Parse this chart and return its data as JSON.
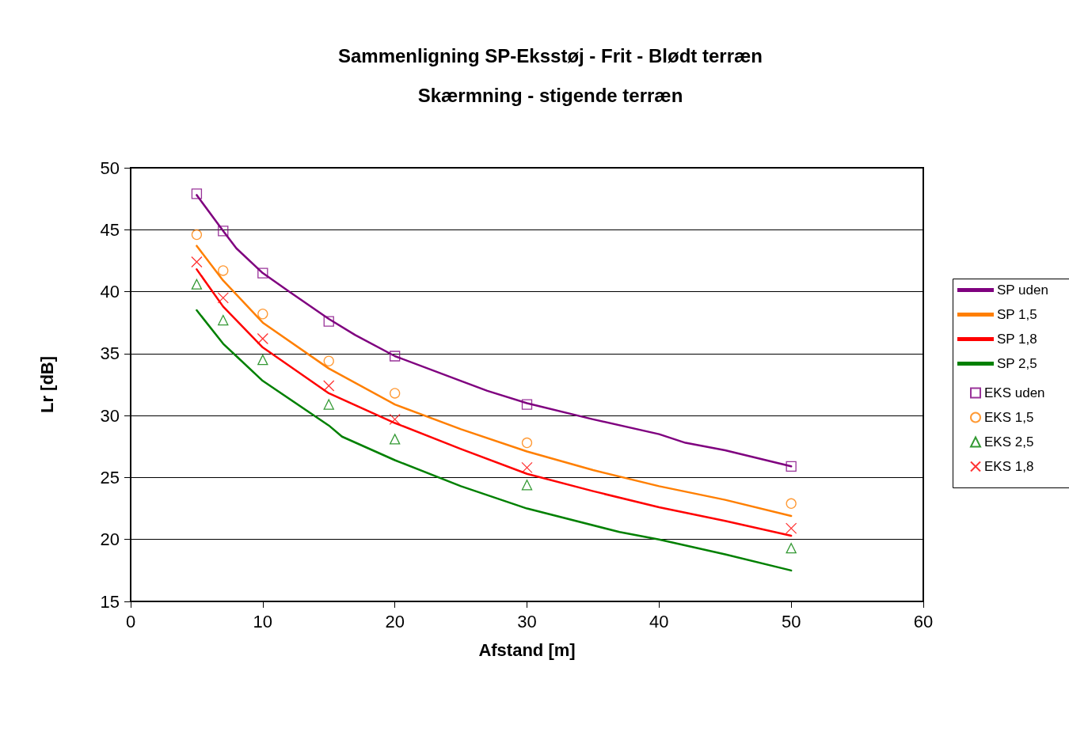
{
  "chart_data": {
    "type": "line",
    "title": "Sammenligning SP-Eksstøj - Frit - Blødt terræn\nSkærmning - stigende terræn",
    "xlabel": "Afstand [m]",
    "ylabel": "Lr [dB]",
    "xlim": [
      0,
      60
    ],
    "xticks": [
      0,
      10,
      20,
      30,
      40,
      50,
      60
    ],
    "ylim": [
      15,
      50
    ],
    "yticks": [
      15,
      20,
      25,
      30,
      35,
      40,
      45,
      50
    ],
    "grid": "y",
    "legend": "right",
    "marker": "none",
    "series": [
      {
        "name": "SP uden",
        "color": "#7f007f",
        "x": [
          5,
          7,
          8,
          10,
          12,
          15,
          17,
          20,
          25,
          27,
          30,
          35,
          40,
          42,
          45,
          50
        ],
        "values": [
          47.8,
          44.9,
          43.5,
          41.5,
          40,
          37.8,
          36.5,
          34.8,
          32.8,
          32,
          31,
          29.7,
          28.5,
          27.8,
          27.2,
          25.9
        ]
      },
      {
        "name": "SP 1,5",
        "color": "#ff7f00",
        "x": [
          5,
          7,
          10,
          15,
          20,
          25,
          30,
          35,
          40,
          45,
          50
        ],
        "values": [
          43.7,
          40.9,
          37.5,
          33.8,
          30.9,
          28.9,
          27.1,
          25.6,
          24.3,
          23.2,
          21.9
        ]
      },
      {
        "name": "SP 1,8",
        "color": "#ff0000",
        "x": [
          5,
          7,
          10,
          15,
          20,
          25,
          30,
          35,
          40,
          45,
          50
        ],
        "values": [
          41.8,
          38.8,
          35.5,
          31.8,
          29.4,
          27.3,
          25.3,
          23.9,
          22.6,
          21.5,
          20.3
        ]
      },
      {
        "name": "SP 2,5",
        "color": "#008000",
        "x": [
          5,
          7,
          8,
          10,
          15,
          16,
          20,
          25,
          30,
          37,
          40,
          45,
          50
        ],
        "values": [
          38.5,
          35.8,
          34.8,
          32.8,
          29.2,
          28.3,
          26.4,
          24.3,
          22.5,
          20.6,
          20,
          18.8,
          17.5
        ]
      },
      {
        "name": "EKS uden",
        "type": "scatter",
        "marker": "square",
        "color": "#7f007f",
        "x": [
          5,
          7,
          10,
          15,
          20,
          30,
          50
        ],
        "values": [
          47.9,
          44.9,
          41.5,
          37.6,
          34.8,
          30.9,
          25.9
        ]
      },
      {
        "name": "EKS 1,5",
        "type": "scatter",
        "marker": "circle",
        "color": "#ff7f00",
        "x": [
          5,
          7,
          10,
          15,
          20,
          30,
          50
        ],
        "values": [
          44.6,
          41.7,
          38.2,
          34.4,
          31.8,
          27.8,
          22.9
        ]
      },
      {
        "name": "EKS 2,5",
        "type": "scatter",
        "marker": "triangle",
        "color": "#008000",
        "x": [
          5,
          7,
          10,
          15,
          20,
          30,
          50
        ],
        "values": [
          40.6,
          37.7,
          34.5,
          30.9,
          28.1,
          24.4,
          19.3
        ]
      },
      {
        "name": "EKS 1,8",
        "type": "scatter",
        "marker": "cross",
        "color": "#ff0000",
        "x": [
          5,
          7,
          10,
          15,
          20,
          30,
          50
        ],
        "values": [
          42.4,
          39.5,
          36.2,
          32.4,
          29.7,
          25.8,
          20.9
        ]
      }
    ]
  }
}
